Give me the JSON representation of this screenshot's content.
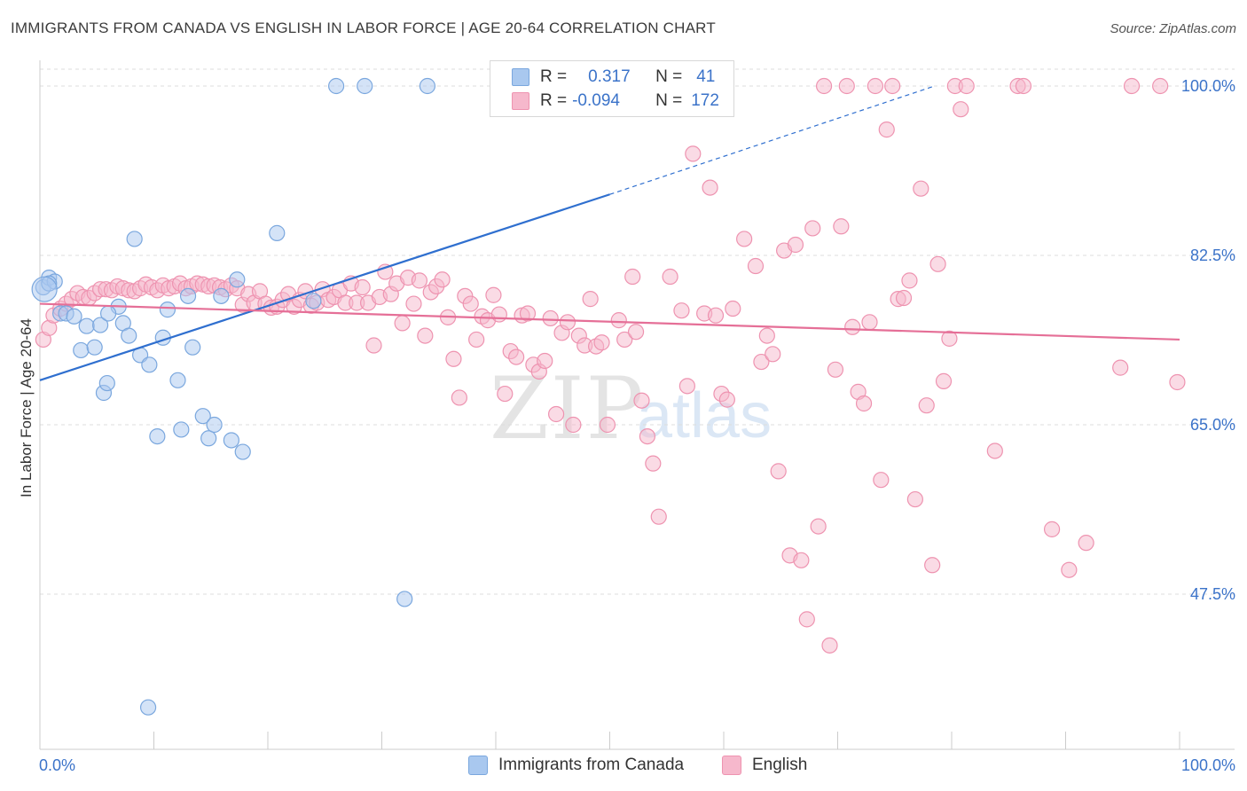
{
  "title": "IMMIGRANTS FROM CANADA VS ENGLISH IN LABOR FORCE | AGE 20-64 CORRELATION CHART",
  "source": "Source: ZipAtlas.com",
  "watermark": {
    "zip": "ZIP",
    "atlas": "atlas"
  },
  "legend": {
    "rows": [
      {
        "r_label": "R =",
        "r_value": "0.317",
        "n_label": "N =",
        "n_value": "41"
      },
      {
        "r_label": "R =",
        "r_value": "-0.094",
        "n_label": "N =",
        "n_value": "172"
      }
    ]
  },
  "colors": {
    "blue_fill": "#a9c8ef",
    "blue_stroke": "#7aa7de",
    "blue_line": "#2f6fcf",
    "pink_fill": "#f6b8cc",
    "pink_stroke": "#ee93b0",
    "pink_line": "#e56f97",
    "grid": "#dcdcdc",
    "tick_text": "#3b73c9"
  },
  "chart_data": {
    "type": "scatter",
    "title": "IMMIGRANTS FROM CANADA VS ENGLISH IN LABOR FORCE | AGE 20-64 CORRELATION CHART",
    "xlabel": "",
    "ylabel": "In Labor Force | Age 20-64",
    "xlim": [
      0,
      100
    ],
    "ylim": [
      32.5,
      101
    ],
    "x_tick_labels": [
      "0.0%",
      "100.0%"
    ],
    "y_ticks": [
      100,
      82.5,
      65,
      47.5
    ],
    "y_tick_labels": [
      "100.0%",
      "82.5%",
      "65.0%",
      "47.5%"
    ],
    "grid": true,
    "legend_position": "top-center",
    "series": [
      {
        "name": "Immigrants from Canada",
        "color": "#a9c8ef",
        "trend": {
          "x": [
            0,
            50
          ],
          "y": [
            69.6,
            88.8
          ],
          "dashed_to": [
            78.5,
            100
          ]
        },
        "points": [
          [
            0.3,
            79.2
          ],
          [
            0.8,
            80.2
          ],
          [
            1.3,
            79.8
          ],
          [
            1.8,
            76.5
          ],
          [
            2.3,
            76.5
          ],
          [
            3.0,
            76.2
          ],
          [
            3.6,
            72.7
          ],
          [
            4.1,
            75.2
          ],
          [
            4.8,
            73.0
          ],
          [
            5.3,
            75.3
          ],
          [
            5.6,
            68.3
          ],
          [
            5.9,
            69.3
          ],
          [
            6.9,
            77.2
          ],
          [
            7.3,
            75.5
          ],
          [
            7.8,
            74.2
          ],
          [
            8.3,
            84.2
          ],
          [
            8.8,
            72.2
          ],
          [
            9.6,
            71.2
          ],
          [
            10.3,
            63.8
          ],
          [
            10.8,
            74.0
          ],
          [
            11.2,
            76.9
          ],
          [
            12.1,
            69.6
          ],
          [
            12.4,
            64.5
          ],
          [
            13.0,
            78.3
          ],
          [
            13.4,
            73.0
          ],
          [
            14.3,
            65.9
          ],
          [
            14.8,
            63.6
          ],
          [
            15.3,
            65.0
          ],
          [
            15.9,
            78.3
          ],
          [
            16.8,
            63.4
          ],
          [
            17.3,
            80.0
          ],
          [
            17.8,
            62.2
          ],
          [
            20.8,
            84.8
          ],
          [
            24.0,
            77.8
          ],
          [
            26.0,
            100
          ],
          [
            28.5,
            100
          ],
          [
            34.0,
            100
          ],
          [
            32.0,
            47.0
          ],
          [
            9.5,
            35.8
          ],
          [
            0.8,
            79.6
          ],
          [
            6.0,
            76.5
          ]
        ]
      },
      {
        "name": "English",
        "color": "#f6b8cc",
        "trend": {
          "x": [
            0,
            100
          ],
          "y": [
            77.5,
            73.8
          ]
        },
        "points": [
          [
            0.3,
            73.8
          ],
          [
            0.8,
            75.0
          ],
          [
            1.2,
            76.3
          ],
          [
            1.8,
            77.0
          ],
          [
            2.3,
            77.5
          ],
          [
            2.8,
            78.0
          ],
          [
            3.3,
            78.6
          ],
          [
            3.8,
            78.2
          ],
          [
            4.3,
            78.1
          ],
          [
            4.8,
            78.6
          ],
          [
            5.3,
            79.0
          ],
          [
            5.8,
            79.0
          ],
          [
            6.3,
            78.9
          ],
          [
            6.8,
            79.3
          ],
          [
            7.3,
            79.1
          ],
          [
            7.8,
            78.9
          ],
          [
            8.3,
            78.8
          ],
          [
            8.8,
            79.1
          ],
          [
            9.3,
            79.5
          ],
          [
            9.8,
            79.2
          ],
          [
            10.3,
            78.9
          ],
          [
            10.8,
            79.4
          ],
          [
            11.3,
            79.1
          ],
          [
            11.8,
            79.3
          ],
          [
            12.3,
            79.6
          ],
          [
            12.8,
            79.1
          ],
          [
            13.3,
            79.3
          ],
          [
            13.8,
            79.6
          ],
          [
            14.3,
            79.5
          ],
          [
            14.8,
            79.3
          ],
          [
            15.3,
            79.4
          ],
          [
            15.8,
            79.2
          ],
          [
            16.3,
            79.0
          ],
          [
            16.8,
            79.4
          ],
          [
            17.3,
            79.1
          ],
          [
            17.8,
            77.4
          ],
          [
            18.3,
            78.5
          ],
          [
            18.8,
            77.6
          ],
          [
            19.3,
            78.8
          ],
          [
            19.8,
            77.5
          ],
          [
            20.3,
            77.1
          ],
          [
            20.8,
            77.2
          ],
          [
            21.3,
            77.9
          ],
          [
            21.8,
            78.5
          ],
          [
            22.3,
            77.2
          ],
          [
            22.8,
            77.9
          ],
          [
            23.3,
            78.8
          ],
          [
            23.8,
            77.3
          ],
          [
            24.3,
            77.6
          ],
          [
            24.8,
            79.0
          ],
          [
            25.3,
            77.9
          ],
          [
            25.8,
            78.2
          ],
          [
            26.3,
            78.9
          ],
          [
            26.8,
            77.6
          ],
          [
            27.3,
            79.6
          ],
          [
            27.8,
            77.6
          ],
          [
            28.3,
            79.2
          ],
          [
            28.8,
            77.6
          ],
          [
            29.3,
            73.2
          ],
          [
            29.8,
            78.2
          ],
          [
            30.3,
            80.8
          ],
          [
            30.8,
            78.5
          ],
          [
            31.3,
            79.6
          ],
          [
            31.8,
            75.5
          ],
          [
            32.3,
            80.2
          ],
          [
            32.8,
            77.5
          ],
          [
            33.3,
            79.9
          ],
          [
            33.8,
            74.2
          ],
          [
            34.3,
            78.7
          ],
          [
            34.8,
            79.3
          ],
          [
            35.3,
            80.0
          ],
          [
            35.8,
            76.1
          ],
          [
            36.3,
            71.8
          ],
          [
            36.8,
            67.8
          ],
          [
            37.3,
            78.3
          ],
          [
            37.8,
            77.5
          ],
          [
            38.3,
            73.8
          ],
          [
            38.8,
            76.2
          ],
          [
            39.3,
            75.8
          ],
          [
            39.8,
            78.4
          ],
          [
            40.3,
            76.4
          ],
          [
            40.8,
            68.2
          ],
          [
            41.3,
            72.6
          ],
          [
            41.8,
            72.0
          ],
          [
            42.3,
            76.3
          ],
          [
            42.8,
            76.5
          ],
          [
            43.3,
            71.2
          ],
          [
            43.8,
            70.5
          ],
          [
            44.3,
            71.6
          ],
          [
            44.8,
            76.0
          ],
          [
            45.3,
            66.1
          ],
          [
            45.8,
            74.5
          ],
          [
            46.3,
            75.6
          ],
          [
            46.8,
            65.0
          ],
          [
            47.3,
            74.2
          ],
          [
            47.8,
            73.2
          ],
          [
            48.3,
            78.0
          ],
          [
            48.8,
            73.1
          ],
          [
            49.3,
            73.5
          ],
          [
            49.8,
            65.0
          ],
          [
            50.8,
            75.8
          ],
          [
            51.3,
            73.8
          ],
          [
            52.0,
            80.3
          ],
          [
            52.3,
            74.6
          ],
          [
            52.8,
            67.5
          ],
          [
            53.3,
            63.8
          ],
          [
            53.8,
            61.0
          ],
          [
            54.3,
            55.5
          ],
          [
            55.3,
            80.3
          ],
          [
            56.3,
            76.8
          ],
          [
            56.8,
            69.0
          ],
          [
            57.3,
            93.0
          ],
          [
            58.3,
            76.5
          ],
          [
            58.8,
            89.5
          ],
          [
            59.3,
            76.3
          ],
          [
            59.8,
            68.2
          ],
          [
            60.3,
            67.6
          ],
          [
            60.8,
            77.0
          ],
          [
            61.8,
            84.2
          ],
          [
            62.8,
            81.4
          ],
          [
            63.3,
            71.5
          ],
          [
            63.8,
            74.2
          ],
          [
            64.3,
            72.3
          ],
          [
            64.8,
            60.2
          ],
          [
            65.3,
            83.0
          ],
          [
            65.8,
            51.5
          ],
          [
            66.3,
            83.6
          ],
          [
            66.8,
            51.0
          ],
          [
            67.3,
            44.9
          ],
          [
            67.8,
            85.3
          ],
          [
            68.3,
            54.5
          ],
          [
            68.8,
            100
          ],
          [
            69.3,
            42.2
          ],
          [
            69.8,
            70.7
          ],
          [
            70.3,
            85.5
          ],
          [
            70.8,
            100
          ],
          [
            71.3,
            75.1
          ],
          [
            71.8,
            68.4
          ],
          [
            72.3,
            67.2
          ],
          [
            72.8,
            75.6
          ],
          [
            73.3,
            100
          ],
          [
            73.8,
            59.3
          ],
          [
            74.3,
            95.5
          ],
          [
            74.8,
            100
          ],
          [
            75.3,
            78.0
          ],
          [
            75.8,
            78.1
          ],
          [
            76.3,
            79.9
          ],
          [
            76.8,
            57.3
          ],
          [
            77.3,
            89.4
          ],
          [
            77.8,
            67.0
          ],
          [
            78.3,
            50.5
          ],
          [
            78.8,
            81.6
          ],
          [
            79.3,
            69.5
          ],
          [
            79.8,
            73.9
          ],
          [
            80.3,
            100
          ],
          [
            80.8,
            97.6
          ],
          [
            81.3,
            100
          ],
          [
            83.8,
            62.3
          ],
          [
            85.8,
            100
          ],
          [
            86.3,
            100
          ],
          [
            88.8,
            54.2
          ],
          [
            90.3,
            50.0
          ],
          [
            91.8,
            52.8
          ],
          [
            94.8,
            70.9
          ],
          [
            95.8,
            100
          ],
          [
            98.3,
            100
          ],
          [
            99.8,
            69.4
          ]
        ]
      }
    ]
  }
}
